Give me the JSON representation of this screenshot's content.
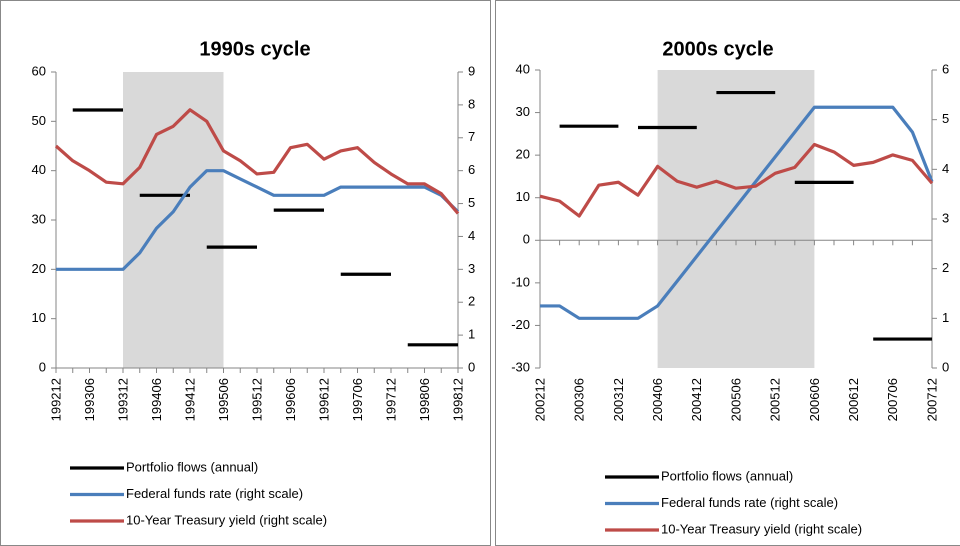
{
  "chart_data": [
    {
      "type": "line",
      "title": "1990s cycle",
      "categories": [
        "199212",
        null,
        "199306",
        null,
        "199312",
        null,
        "199406",
        null,
        "199412",
        null,
        "199506",
        null,
        "199512",
        null,
        "199606",
        null,
        "199612",
        null,
        "199706",
        null,
        "199712",
        null,
        "199806",
        null,
        "199812"
      ],
      "shade": {
        "from": "199312",
        "to": "199506",
        "color": "#d9d9d9"
      },
      "ylim": [
        0,
        60
      ],
      "yticks": [
        0,
        10,
        20,
        30,
        40,
        50,
        60
      ],
      "y2lim": [
        0,
        9
      ],
      "y2ticks": [
        0,
        1,
        2,
        3,
        4,
        5,
        6,
        7,
        8,
        9
      ],
      "series": [
        {
          "name": "Portfolio flows (annual)",
          "color": "#000000",
          "draw": "segments",
          "values": [
            null,
            52.3,
            52.3,
            52.3,
            52.3,
            35,
            35,
            35,
            35,
            24.5,
            24.5,
            24.5,
            24.5,
            32,
            32,
            32,
            32,
            19,
            19,
            19,
            19,
            4.7,
            4.7,
            4.7,
            4.7
          ]
        },
        {
          "name": "Federal funds rate (right scale)",
          "color": "#4a7ebb",
          "axis": "y2",
          "values": [
            3,
            3,
            3,
            3,
            3,
            3.5,
            4.25,
            4.75,
            5.5,
            6,
            6,
            5.75,
            5.5,
            5.25,
            5.25,
            5.25,
            5.25,
            5.5,
            5.5,
            5.5,
            5.5,
            5.5,
            5.5,
            5.25,
            4.75
          ]
        },
        {
          "name": "10-Year Treasury yield (right scale)",
          "color": "#be4b48",
          "axis": "y2",
          "values": [
            6.75,
            6.3,
            6,
            5.65,
            5.6,
            6.1,
            7.1,
            7.35,
            7.85,
            7.5,
            6.6,
            6.3,
            5.9,
            5.95,
            6.7,
            6.8,
            6.35,
            6.6,
            6.7,
            6.25,
            5.9,
            5.6,
            5.6,
            5.3,
            4.7
          ]
        }
      ]
    },
    {
      "type": "line",
      "title": "2000s cycle",
      "categories": [
        "200212",
        null,
        "200306",
        null,
        "200312",
        null,
        "200406",
        null,
        "200412",
        null,
        "200506",
        null,
        "200512",
        null,
        "200606",
        null,
        "200612",
        null,
        "200706",
        null,
        "200712"
      ],
      "shade": {
        "from": "200406",
        "to": "200606",
        "color": "#d9d9d9"
      },
      "ylim": [
        -30,
        40
      ],
      "yticks": [
        -30,
        -20,
        -10,
        0,
        10,
        20,
        30,
        40
      ],
      "y2lim": [
        0,
        6
      ],
      "y2ticks": [
        0,
        1,
        2,
        3,
        4,
        5,
        6
      ],
      "series": [
        {
          "name": "Portfolio flows (annual)",
          "color": "#000000",
          "draw": "segments",
          "values": [
            null,
            26.8,
            26.8,
            26.8,
            26.8,
            26.5,
            26.5,
            26.5,
            26.5,
            34.7,
            34.7,
            34.7,
            34.7,
            13.6,
            13.6,
            13.6,
            13.6,
            -23.2,
            -23.2,
            -23.2,
            -23.2
          ]
        },
        {
          "name": "Federal funds rate (right scale)",
          "color": "#4a7ebb",
          "axis": "y2",
          "values": [
            1.25,
            1.25,
            1,
            1,
            1,
            1,
            1.25,
            1.75,
            2.25,
            2.75,
            3.25,
            3.75,
            4.25,
            4.75,
            5.25,
            5.25,
            5.25,
            5.25,
            5.25,
            4.75,
            3.75
          ]
        },
        {
          "name": "10-Year Treasury yield (right scale)",
          "color": "#be4b48",
          "axis": "y2",
          "values": [
            3.46,
            3.36,
            3.06,
            3.68,
            3.74,
            3.48,
            4.06,
            3.76,
            3.64,
            3.76,
            3.62,
            3.66,
            3.92,
            4.04,
            4.5,
            4.35,
            4.08,
            4.14,
            4.29,
            4.18,
            3.72
          ]
        }
      ]
    }
  ]
}
